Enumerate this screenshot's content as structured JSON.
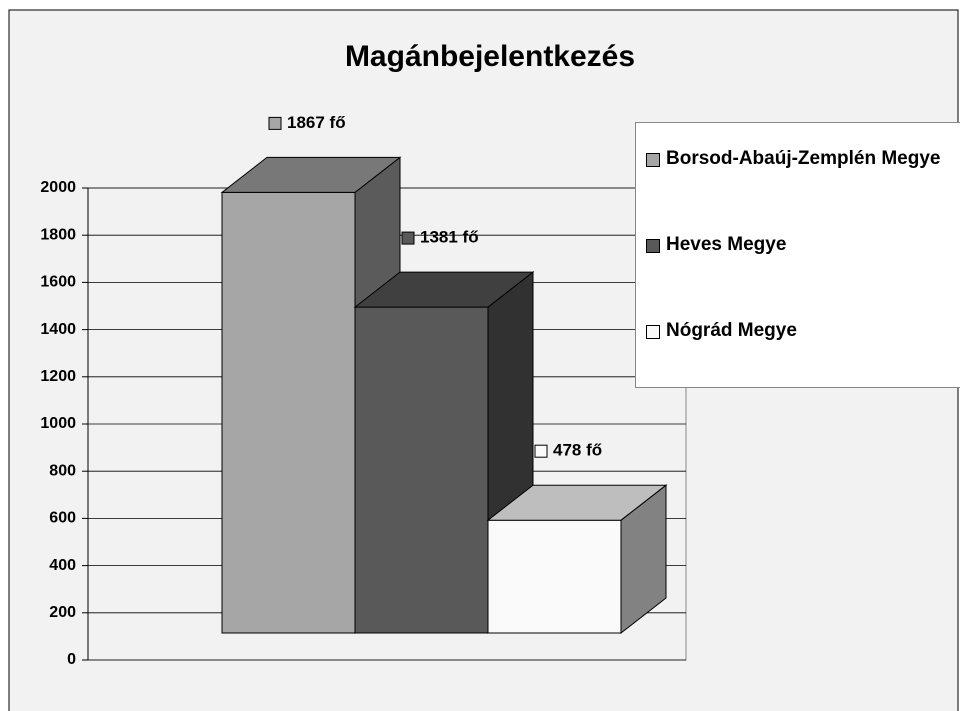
{
  "chart_data": {
    "type": "bar3d",
    "title": "Magánbejelentkezés",
    "categories": [
      null
    ],
    "series": [
      {
        "name": "Borsod-Abaúj-Zemplén Megye",
        "color": "#a6a6a6",
        "values": [
          1867
        ],
        "value_labels": [
          "1867 fő"
        ]
      },
      {
        "name": "Heves Megye",
        "color": "#595959",
        "values": [
          1381
        ],
        "value_labels": [
          "1381 fő"
        ]
      },
      {
        "name": "Nógrád Megye",
        "color": "#fafafa",
        "values": [
          478
        ],
        "value_labels": [
          "478 fő"
        ]
      }
    ],
    "ylim": [
      0,
      2000
    ],
    "yticks": [
      0,
      200,
      400,
      600,
      800,
      1000,
      1200,
      1400,
      1600,
      1800,
      2000
    ],
    "grid": true,
    "legend": "right"
  }
}
